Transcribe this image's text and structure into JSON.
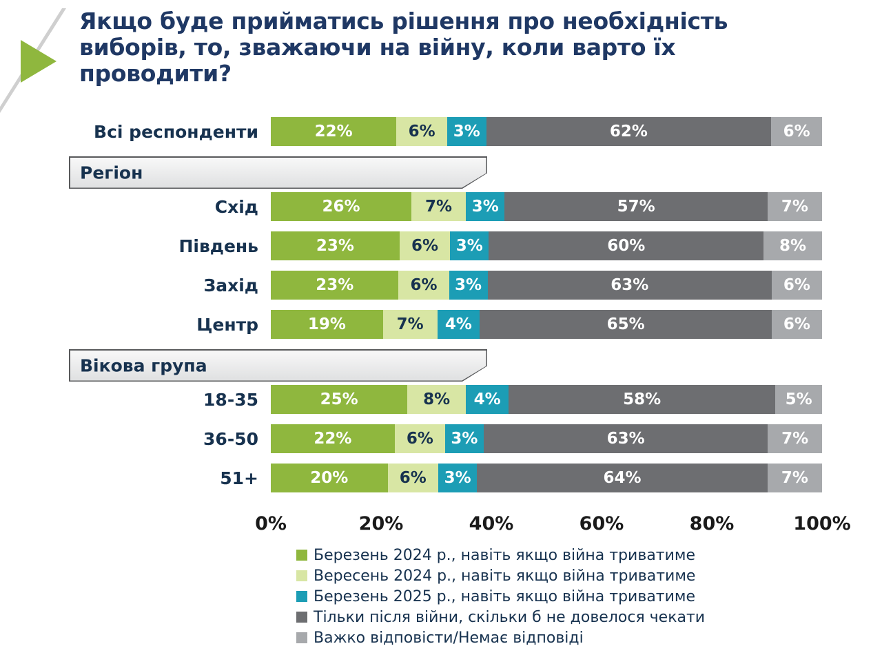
{
  "decor": {
    "arrow_color": "#8FB73E"
  },
  "chart_data": {
    "type": "bar",
    "orientation": "horizontal",
    "stacked": true,
    "grid": false,
    "title": "Якщо буде прийматись рішення про необхідність виборів, то, зважаючи на війну, коли варто їх проводити?",
    "xlabel": "",
    "ylabel": "",
    "xlim": [
      0,
      100
    ],
    "x_ticks": [
      "0%",
      "20%",
      "40%",
      "60%",
      "80%",
      "100%"
    ],
    "legend_position": "bottom-left",
    "series": [
      {
        "name": "Березень 2024 р., навіть якщо війна триватиме",
        "color": "#8FB73E",
        "dark_label": false
      },
      {
        "name": "Вересень 2024 р., навіть якщо війна триватиме",
        "color": "#D8E6A4",
        "dark_label": true
      },
      {
        "name": "Березень 2025 р., навіть якщо війна триватиме",
        "color": "#1C9DB5",
        "dark_label": false
      },
      {
        "name": "Тільки після війни, скільки б не довелося чекати",
        "color": "#6D6E71",
        "dark_label": false
      },
      {
        "name": "Важко відповісти/Немає відповіді",
        "color": "#A7A9AC",
        "dark_label": false
      }
    ],
    "rows": [
      {
        "type": "bar",
        "label": "Всі респонденти",
        "values": [
          22,
          6,
          3,
          62,
          6
        ]
      },
      {
        "type": "section",
        "label": "Регіон"
      },
      {
        "type": "bar",
        "label": "Схід",
        "values": [
          26,
          7,
          3,
          57,
          7
        ]
      },
      {
        "type": "bar",
        "label": "Південь",
        "values": [
          23,
          6,
          3,
          60,
          8
        ]
      },
      {
        "type": "bar",
        "label": "Захід",
        "values": [
          23,
          6,
          3,
          63,
          6
        ]
      },
      {
        "type": "bar",
        "label": "Центр",
        "values": [
          19,
          7,
          4,
          65,
          6
        ]
      },
      {
        "type": "section",
        "label": "Вікова група"
      },
      {
        "type": "bar",
        "label": "18-35",
        "values": [
          25,
          8,
          4,
          58,
          5
        ]
      },
      {
        "type": "bar",
        "label": "36-50",
        "values": [
          22,
          6,
          3,
          63,
          7
        ]
      },
      {
        "type": "bar",
        "label": "51+",
        "values": [
          20,
          6,
          3,
          64,
          7
        ]
      }
    ]
  }
}
